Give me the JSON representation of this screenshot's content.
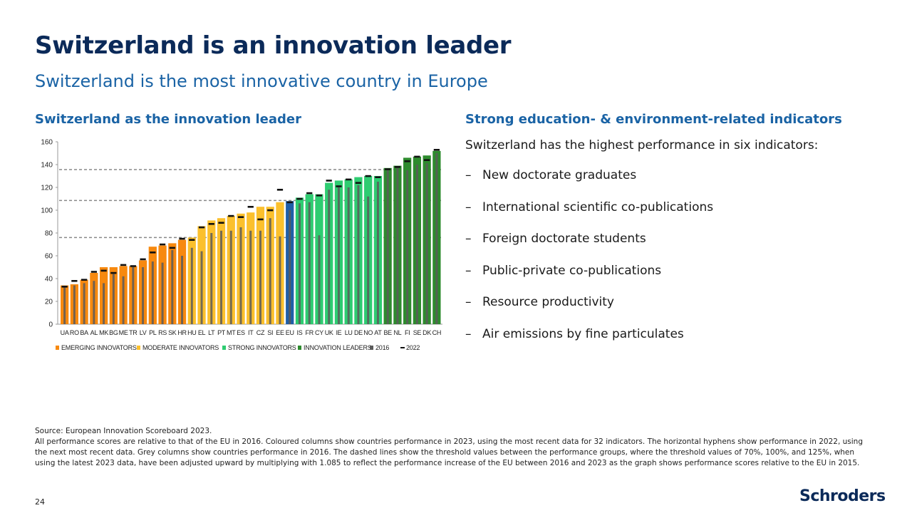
{
  "title": "Switzerland is an innovation leader",
  "subtitle": "Switzerland is the most innovative country in Europe",
  "left_heading": "Switzerland as the innovation leader",
  "right_heading": "Strong education- & environment-related indicators",
  "intro": "Switzerland has the highest performance in six indicators:",
  "bullets": [
    "New doctorate graduates",
    "International scientific co-publications",
    "Foreign doctorate students",
    "Public-private co-publications",
    "Resource productivity",
    "Air emissions by fine particulates"
  ],
  "bullet_dash": "–",
  "source_line": "Source: European Innovation Scoreboard 2023.",
  "notes": "All performance scores are relative to that of the EU in 2016. Coloured columns show countries performance in 2023, using the most recent data for 32 indicators. The horizontal hyphens show performance in 2022, using the next most recent data. Grey columns show countries performance in 2016. The dashed lines show the threshold values between the performance groups, where the threshold values of 70%, 100%, and 125%, when using the latest 2023 data, have been adjusted upward by multiplying with 1.085 to reflect the performance increase of the EU between 2016 and 2023 as the graph shows performance scores relative to the EU in 2015.",
  "page_number": "24",
  "logo": "Schroders",
  "colors": {
    "emerging": "#f7890f",
    "moderate": "#fbc02d",
    "strong": "#2ecc71",
    "leader": "#2e8b2e",
    "eu": "#1f5fa8",
    "grey": "#5a5a5a"
  },
  "chart_data": {
    "type": "bar",
    "title": "",
    "ylim": [
      0,
      160
    ],
    "yticks": [
      "0",
      "20",
      "40",
      "60",
      "80",
      "100",
      "120",
      "140",
      "160"
    ],
    "thresholds": [
      76,
      108.5,
      135.6
    ],
    "categories": [
      "UA",
      "RO",
      "BA",
      "AL",
      "MK",
      "BG",
      "ME",
      "TR",
      "LV",
      "PL",
      "RS",
      "SK",
      "HR",
      "HU",
      "EL",
      "LT",
      "PT",
      "MT",
      "ES",
      "IT",
      "CZ",
      "SI",
      "EE",
      "EU",
      "IS",
      "FR",
      "CY",
      "UK",
      "IE",
      "LU",
      "DE",
      "NO",
      "AT",
      "BE",
      "NL",
      "FI",
      "SE",
      "DK",
      "CH"
    ],
    "group": [
      "E",
      "E",
      "E",
      "E",
      "E",
      "E",
      "E",
      "E",
      "E",
      "E",
      "E",
      "E",
      "E",
      "M",
      "M",
      "M",
      "M",
      "M",
      "M",
      "M",
      "M",
      "M",
      "M",
      "EU",
      "S",
      "S",
      "S",
      "S",
      "S",
      "S",
      "S",
      "S",
      "S",
      "L",
      "L",
      "L",
      "L",
      "L",
      "L"
    ],
    "series": [
      {
        "name": "2023",
        "values": [
          34,
          35,
          39,
          45,
          50,
          50,
          51,
          51,
          56,
          68,
          69,
          71,
          74,
          76,
          86,
          91,
          93,
          95,
          97,
          98,
          103,
          103,
          107,
          108,
          111,
          114,
          114,
          124,
          126,
          127,
          129,
          130,
          130,
          137,
          139,
          146,
          147,
          148,
          152
        ]
      },
      {
        "name": "2016",
        "values": [
          33,
          34,
          36,
          38,
          36,
          44,
          42,
          50,
          50,
          55,
          54,
          65,
          60,
          67,
          64,
          80,
          82,
          82,
          85,
          82,
          82,
          93,
          77,
          100,
          106,
          107,
          78,
          118,
          120,
          120,
          122,
          112,
          125,
          135,
          138,
          135,
          140,
          141,
          150
        ]
      },
      {
        "name": "2022",
        "values": [
          33,
          38,
          39,
          46,
          47,
          45,
          52,
          51,
          57,
          63,
          70,
          67,
          75,
          74,
          85,
          88,
          89,
          95,
          94,
          103,
          92,
          100,
          118,
          107,
          110,
          115,
          113,
          126,
          121,
          127,
          124,
          130,
          129,
          136,
          138,
          143,
          147,
          144,
          153
        ]
      }
    ],
    "legend": [
      "EMERGING INNOVATORS",
      "MODERATE INNOVATORS",
      "STRONG INNOVATORS",
      "INNOVATION LEADERS",
      "2016",
      "2022"
    ],
    "legend_position": "bottom"
  }
}
